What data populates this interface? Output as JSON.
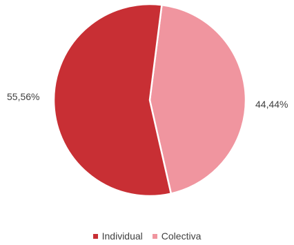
{
  "chart_data": {
    "type": "pie",
    "categories": [
      "Individual",
      "Colectiva"
    ],
    "values": [
      55.56,
      44.44
    ],
    "data_labels": [
      "55,56%",
      "44,44%"
    ],
    "colors": [
      "#c82f34",
      "#f0959f"
    ],
    "legend_position": "bottom",
    "start_angle_note": "slices begin near top, clockwise: Colectiva then Individual"
  },
  "legend": {
    "items": [
      {
        "label": "Individual",
        "color": "#c82f34"
      },
      {
        "label": "Colectiva",
        "color": "#f0959f"
      }
    ]
  }
}
